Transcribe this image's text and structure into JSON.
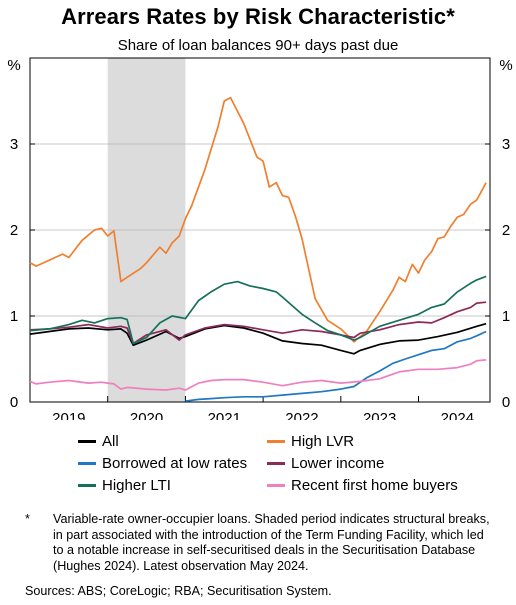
{
  "title": "Arrears Rates by Risk Characteristic*",
  "subtitle": "Share of loan balances 90+ days past due",
  "footnote_marker": "*",
  "footnote": "Variable-rate owner-occupier loans. Shaded period indicates structural breaks, in part associated with the introduction of the Term Funding Facility, which led to a notable increase in self-securitised deals in the Securitisation Database (Hughes 2024). Latest observation May 2024.",
  "sources": "Sources: ABS; CoreLogic; RBA; Securitisation System.",
  "chart_data": {
    "type": "line",
    "y_unit_left": "%",
    "y_unit_right": "%",
    "ylim": [
      0,
      4
    ],
    "yticks": [
      "0",
      "1",
      "2",
      "3"
    ],
    "xlim": [
      2018.5,
      2024.42
    ],
    "xtick_labels": [
      "2019",
      "2020",
      "2021",
      "2022",
      "2023",
      "2024"
    ],
    "xtick_positions": [
      2019,
      2020,
      2021,
      2022,
      2023,
      2024
    ],
    "shaded_period": [
      2019.5,
      2020.5
    ],
    "grid": true,
    "legend_placement": "below",
    "series": [
      {
        "name": "All",
        "color": "#000000",
        "x": [
          2018.5,
          2018.75,
          2019.0,
          2019.25,
          2019.5,
          2019.67,
          2019.75,
          2019.83,
          2020.0,
          2020.25,
          2020.42,
          2020.5,
          2020.75,
          2021.0,
          2021.25,
          2021.5,
          2021.75,
          2022.0,
          2022.25,
          2022.5,
          2022.67,
          2022.75,
          2023.0,
          2023.25,
          2023.5,
          2023.75,
          2024.0,
          2024.25,
          2024.37
        ],
        "y": [
          0.79,
          0.82,
          0.85,
          0.86,
          0.84,
          0.85,
          0.8,
          0.66,
          0.72,
          0.82,
          0.74,
          0.76,
          0.85,
          0.89,
          0.86,
          0.8,
          0.71,
          0.68,
          0.66,
          0.6,
          0.56,
          0.6,
          0.67,
          0.71,
          0.72,
          0.76,
          0.81,
          0.88,
          0.91
        ]
      },
      {
        "name": "High LVR",
        "color": "#f07f2f",
        "x": [
          2018.5,
          2018.58,
          2018.75,
          2018.92,
          2019.0,
          2019.17,
          2019.33,
          2019.42,
          2019.5,
          2019.58,
          2019.67,
          2019.75,
          2019.92,
          2020.0,
          2020.17,
          2020.25,
          2020.33,
          2020.42,
          2020.5,
          2020.58,
          2020.75,
          2020.92,
          2021.0,
          2021.08,
          2021.17,
          2021.25,
          2021.42,
          2021.5,
          2021.58,
          2021.67,
          2021.75,
          2021.83,
          2021.92,
          2022.0,
          2022.17,
          2022.33,
          2022.5,
          2022.67,
          2022.75,
          2022.83,
          2023.0,
          2023.17,
          2023.25,
          2023.33,
          2023.42,
          2023.5,
          2023.58,
          2023.67,
          2023.75,
          2023.83,
          2023.92,
          2024.0,
          2024.08,
          2024.17,
          2024.25,
          2024.37
        ],
        "y": [
          1.62,
          1.58,
          1.65,
          1.72,
          1.68,
          1.88,
          2.0,
          2.02,
          1.93,
          1.99,
          1.4,
          1.45,
          1.55,
          1.62,
          1.8,
          1.73,
          1.85,
          1.93,
          2.13,
          2.28,
          2.7,
          3.2,
          3.5,
          3.54,
          3.38,
          3.24,
          2.85,
          2.8,
          2.5,
          2.55,
          2.4,
          2.38,
          2.15,
          1.9,
          1.2,
          0.95,
          0.85,
          0.7,
          0.76,
          0.82,
          1.05,
          1.3,
          1.45,
          1.4,
          1.6,
          1.5,
          1.65,
          1.75,
          1.9,
          1.92,
          2.05,
          2.15,
          2.18,
          2.3,
          2.35,
          2.55
        ]
      },
      {
        "name": "Borrowed at low rates",
        "color": "#1f78c0",
        "x": [
          2020.5,
          2020.67,
          2020.83,
          2021.0,
          2021.25,
          2021.5,
          2021.75,
          2022.0,
          2022.25,
          2022.5,
          2022.67,
          2022.83,
          2023.0,
          2023.17,
          2023.33,
          2023.5,
          2023.67,
          2023.83,
          2024.0,
          2024.17,
          2024.25,
          2024.37
        ],
        "y": [
          0.01,
          0.03,
          0.04,
          0.05,
          0.06,
          0.06,
          0.08,
          0.1,
          0.12,
          0.15,
          0.18,
          0.28,
          0.36,
          0.45,
          0.5,
          0.55,
          0.6,
          0.62,
          0.7,
          0.74,
          0.77,
          0.82
        ]
      },
      {
        "name": "Lower income",
        "color": "#8c2a5a",
        "x": [
          2018.5,
          2018.75,
          2019.0,
          2019.25,
          2019.5,
          2019.67,
          2019.75,
          2019.83,
          2020.0,
          2020.25,
          2020.42,
          2020.5,
          2020.75,
          2021.0,
          2021.25,
          2021.5,
          2021.75,
          2022.0,
          2022.25,
          2022.5,
          2022.67,
          2022.75,
          2023.0,
          2023.25,
          2023.5,
          2023.67,
          2023.83,
          2024.0,
          2024.17,
          2024.25,
          2024.37
        ],
        "y": [
          0.84,
          0.85,
          0.87,
          0.9,
          0.86,
          0.88,
          0.86,
          0.68,
          0.78,
          0.84,
          0.72,
          0.78,
          0.86,
          0.9,
          0.88,
          0.84,
          0.8,
          0.84,
          0.82,
          0.78,
          0.75,
          0.8,
          0.84,
          0.9,
          0.93,
          0.92,
          0.98,
          1.05,
          1.1,
          1.15,
          1.16
        ]
      },
      {
        "name": "Higher LTI",
        "color": "#16705a",
        "x": [
          2018.5,
          2018.75,
          2019.0,
          2019.17,
          2019.33,
          2019.5,
          2019.67,
          2019.75,
          2019.83,
          2020.0,
          2020.17,
          2020.33,
          2020.5,
          2020.67,
          2020.83,
          2021.0,
          2021.17,
          2021.33,
          2021.5,
          2021.67,
          2021.75,
          2022.0,
          2022.17,
          2022.33,
          2022.5,
          2022.67,
          2022.75,
          2023.0,
          2023.25,
          2023.5,
          2023.67,
          2023.83,
          2024.0,
          2024.17,
          2024.25,
          2024.37
        ],
        "y": [
          0.83,
          0.85,
          0.9,
          0.95,
          0.92,
          0.97,
          0.98,
          0.96,
          0.68,
          0.75,
          0.92,
          1.0,
          0.97,
          1.18,
          1.28,
          1.37,
          1.4,
          1.35,
          1.32,
          1.28,
          1.22,
          1.02,
          0.92,
          0.83,
          0.78,
          0.72,
          0.75,
          0.88,
          0.95,
          1.02,
          1.1,
          1.14,
          1.28,
          1.38,
          1.42,
          1.46
        ]
      },
      {
        "name": "Recent first home buyers",
        "color": "#f07fc0",
        "x": [
          2018.5,
          2018.58,
          2018.75,
          2019.0,
          2019.25,
          2019.42,
          2019.5,
          2019.58,
          2019.67,
          2019.75,
          2020.0,
          2020.25,
          2020.42,
          2020.5,
          2020.67,
          2020.83,
          2021.0,
          2021.25,
          2021.5,
          2021.75,
          2022.0,
          2022.25,
          2022.5,
          2022.75,
          2023.0,
          2023.25,
          2023.5,
          2023.75,
          2024.0,
          2024.17,
          2024.25,
          2024.37
        ],
        "y": [
          0.24,
          0.21,
          0.23,
          0.25,
          0.22,
          0.23,
          0.22,
          0.21,
          0.15,
          0.17,
          0.15,
          0.14,
          0.16,
          0.14,
          0.22,
          0.25,
          0.26,
          0.26,
          0.23,
          0.19,
          0.23,
          0.25,
          0.22,
          0.24,
          0.27,
          0.35,
          0.38,
          0.38,
          0.4,
          0.44,
          0.48,
          0.49
        ]
      }
    ]
  }
}
